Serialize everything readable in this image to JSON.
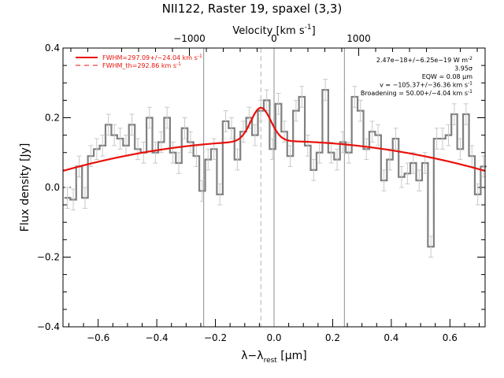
{
  "chart_data": {
    "type": "line",
    "title": "NII122, Raster 19, spaxel (3,3)",
    "xlabel_main": "λ−λ",
    "xlabel_sub": "rest",
    "xlabel_unit": " [μm]",
    "ylabel": "Flux density [Jy]",
    "top_axis_label": "Velocity [km s",
    "top_axis_label_sup": "-1",
    "top_axis_label_end": "]",
    "xlim": [
      -0.72,
      0.72
    ],
    "ylim": [
      -0.4,
      0.4
    ],
    "top_velocity_per_um": 3462,
    "x_ticks": [
      -0.6,
      -0.4,
      -0.2,
      0.0,
      0.2,
      0.4,
      0.6
    ],
    "x_tick_labels": [
      "−0.6",
      "−0.4",
      "−0.2",
      "0.0",
      "0.2",
      "0.4",
      "0.6"
    ],
    "y_ticks": [
      -0.4,
      -0.2,
      0.0,
      0.2,
      0.4
    ],
    "y_tick_labels": [
      "−0.4",
      "−0.2",
      "0.0",
      "0.2",
      "0.4"
    ],
    "top_ticks": [
      -1000,
      0,
      1000
    ],
    "top_tick_labels": [
      "−1000",
      "0",
      "1000"
    ],
    "vertical_lines": [
      -0.24,
      0.0,
      0.24
    ],
    "dashed_line": -0.045,
    "legend": [
      {
        "label": "FWHM=297.09+/−24.04 km s",
        "sup": "-1",
        "style": "solid",
        "color": "#e8110b"
      },
      {
        "label": "FWHM_th=292.86 km s",
        "sup": "-1",
        "style": "dashed",
        "color": "#e8110b"
      }
    ],
    "annotations": [
      {
        "text": "2.47e−18+/−6.25e−19 W m",
        "sup": "-2"
      },
      {
        "text": "3.95σ",
        "sup": ""
      },
      {
        "text": "EQW = 0.08 μm",
        "sup": ""
      },
      {
        "text": "v = −105.37+/−36.36 km s",
        "sup": "-1"
      },
      {
        "text": "Broadening = 50.00+/−4.04 km s",
        "sup": "-1"
      }
    ],
    "data_series": {
      "name": "",
      "color": "#808080",
      "bin_width": 0.0202,
      "x": [
        -0.705,
        -0.685,
        -0.665,
        -0.645,
        -0.625,
        -0.605,
        -0.585,
        -0.565,
        -0.545,
        -0.525,
        -0.505,
        -0.485,
        -0.465,
        -0.445,
        -0.425,
        -0.405,
        -0.385,
        -0.365,
        -0.345,
        -0.325,
        -0.305,
        -0.285,
        -0.265,
        -0.245,
        -0.225,
        -0.205,
        -0.185,
        -0.165,
        -0.145,
        -0.125,
        -0.105,
        -0.085,
        -0.065,
        -0.045,
        -0.025,
        -0.005,
        0.015,
        0.035,
        0.055,
        0.075,
        0.095,
        0.115,
        0.135,
        0.155,
        0.175,
        0.195,
        0.215,
        0.235,
        0.255,
        0.275,
        0.295,
        0.315,
        0.335,
        0.355,
        0.375,
        0.395,
        0.415,
        0.435,
        0.455,
        0.475,
        0.495,
        0.515,
        0.535,
        0.555,
        0.575,
        0.595,
        0.615,
        0.635,
        0.655,
        0.675,
        0.695,
        0.715
      ],
      "y": [
        -0.03,
        -0.035,
        0.06,
        -0.03,
        0.09,
        0.11,
        0.12,
        0.18,
        0.15,
        0.14,
        0.12,
        0.18,
        0.11,
        0.1,
        0.2,
        0.1,
        0.13,
        0.2,
        0.1,
        0.07,
        0.17,
        0.13,
        0.09,
        -0.01,
        0.08,
        0.11,
        -0.02,
        0.19,
        0.17,
        0.08,
        0.16,
        0.2,
        0.15,
        0.22,
        0.25,
        0.11,
        0.24,
        0.16,
        0.09,
        0.22,
        0.26,
        0.12,
        0.05,
        0.1,
        0.28,
        0.1,
        0.08,
        0.13,
        0.1,
        0.26,
        0.22,
        0.11,
        0.16,
        0.15,
        0.02,
        0.08,
        0.14,
        0.03,
        0.04,
        0.07,
        0.02,
        0.07,
        -0.17,
        0.14,
        0.14,
        0.15,
        0.21,
        0.11,
        0.21,
        0.09,
        -0.02,
        0.06
      ],
      "err": 0.03
    },
    "fit_series": {
      "name": "",
      "color": "#e8110b",
      "continuum_peak": 0.133,
      "continuum_curvature": 0.165,
      "gaussian_center": -0.045,
      "gaussian_amp": 0.096,
      "gaussian_sigma": 0.034
    },
    "grid": false,
    "legend_position": "top-left"
  }
}
